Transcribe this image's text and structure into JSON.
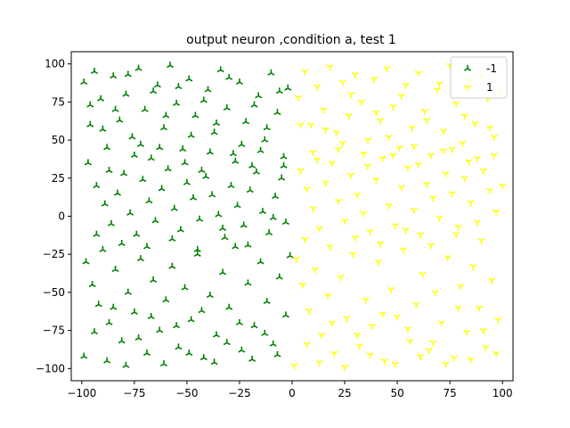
{
  "chart_data": {
    "type": "scatter",
    "title": "output neuron ,condition a, test 1",
    "xlabel": "",
    "ylabel": "",
    "xlim": [
      -105,
      105
    ],
    "ylim": [
      -108,
      108
    ],
    "xticks": [
      -100,
      -75,
      -50,
      -25,
      0,
      25,
      50,
      75,
      100
    ],
    "yticks": [
      -100,
      -75,
      -50,
      -25,
      0,
      25,
      50,
      75,
      100
    ],
    "grid": false,
    "legend": "top-right",
    "series": [
      {
        "name": "-1",
        "color": "#008000",
        "marker": "tri_up",
        "points": [
          [
            -99,
            88
          ],
          [
            -96,
            60
          ],
          [
            -94,
            95
          ],
          [
            -91,
            77
          ],
          [
            -88,
            45
          ],
          [
            -85,
            92
          ],
          [
            -82,
            63
          ],
          [
            -79,
            80
          ],
          [
            -76,
            52
          ],
          [
            -73,
            97
          ],
          [
            -70,
            70
          ],
          [
            -67,
            38
          ],
          [
            -64,
            86
          ],
          [
            -61,
            58
          ],
          [
            -58,
            99
          ],
          [
            -55,
            74
          ],
          [
            -52,
            44
          ],
          [
            -49,
            90
          ],
          [
            -46,
            66
          ],
          [
            -43,
            30
          ],
          [
            -40,
            83
          ],
          [
            -37,
            55
          ],
          [
            -34,
            96
          ],
          [
            -31,
            71
          ],
          [
            -28,
            41
          ],
          [
            -25,
            88
          ],
          [
            -22,
            62
          ],
          [
            -19,
            33
          ],
          [
            -16,
            79
          ],
          [
            -13,
            50
          ],
          [
            -10,
            94
          ],
          [
            -7,
            68
          ],
          [
            -4,
            39
          ],
          [
            -2,
            84
          ],
          [
            -97,
            35
          ],
          [
            -93,
            20
          ],
          [
            -89,
            8
          ],
          [
            -86,
            -5
          ],
          [
            -83,
            15
          ],
          [
            -80,
            28
          ],
          [
            -77,
            2
          ],
          [
            -74,
            -12
          ],
          [
            -71,
            24
          ],
          [
            -68,
            10
          ],
          [
            -65,
            -3
          ],
          [
            -62,
            18
          ],
          [
            -59,
            31
          ],
          [
            -56,
            5
          ],
          [
            -53,
            -9
          ],
          [
            -50,
            22
          ],
          [
            -47,
            12
          ],
          [
            -44,
            -2
          ],
          [
            -41,
            26
          ],
          [
            -38,
            14
          ],
          [
            -35,
            1
          ],
          [
            -32,
            -14
          ],
          [
            -29,
            20
          ],
          [
            -26,
            7
          ],
          [
            -23,
            -6
          ],
          [
            -20,
            17
          ],
          [
            -17,
            29
          ],
          [
            -14,
            3
          ],
          [
            -11,
            -11
          ],
          [
            -8,
            13
          ],
          [
            -5,
            25
          ],
          [
            -3,
            -4
          ],
          [
            -98,
            -30
          ],
          [
            -95,
            -45
          ],
          [
            -92,
            -58
          ],
          [
            -90,
            -22
          ],
          [
            -87,
            -70
          ],
          [
            -84,
            -35
          ],
          [
            -81,
            -82
          ],
          [
            -78,
            -50
          ],
          [
            -75,
            -63
          ],
          [
            -72,
            -28
          ],
          [
            -69,
            -90
          ],
          [
            -66,
            -42
          ],
          [
            -63,
            -75
          ],
          [
            -60,
            -55
          ],
          [
            -57,
            -33
          ],
          [
            -54,
            -86
          ],
          [
            -51,
            -47
          ],
          [
            -48,
            -68
          ],
          [
            -45,
            -25
          ],
          [
            -42,
            -93
          ],
          [
            -39,
            -52
          ],
          [
            -36,
            -78
          ],
          [
            -33,
            -37
          ],
          [
            -30,
            -60
          ],
          [
            -27,
            -20
          ],
          [
            -24,
            -88
          ],
          [
            -21,
            -44
          ],
          [
            -18,
            -72
          ],
          [
            -15,
            -30
          ],
          [
            -12,
            -56
          ],
          [
            -9,
            -84
          ],
          [
            -6,
            -40
          ],
          [
            -3,
            -65
          ],
          [
            -1,
            -26
          ],
          [
            -99,
            -92
          ],
          [
            -94,
            -76
          ],
          [
            -88,
            -95
          ],
          [
            -85,
            -60
          ],
          [
            -79,
            -98
          ],
          [
            -73,
            -80
          ],
          [
            -67,
            -66
          ],
          [
            -61,
            -97
          ],
          [
            -55,
            -72
          ],
          [
            -49,
            -90
          ],
          [
            -43,
            -62
          ],
          [
            -37,
            -96
          ],
          [
            -31,
            -83
          ],
          [
            -25,
            -70
          ],
          [
            -19,
            -94
          ],
          [
            -13,
            -77
          ],
          [
            -7,
            -91
          ],
          [
            -96,
            73
          ],
          [
            -90,
            57
          ],
          [
            -84,
            70
          ],
          [
            -78,
            93
          ],
          [
            -72,
            47
          ],
          [
            -66,
            82
          ],
          [
            -60,
            66
          ],
          [
            -54,
            85
          ],
          [
            -48,
            53
          ],
          [
            -42,
            76
          ],
          [
            -36,
            61
          ],
          [
            -30,
            91
          ],
          [
            -24,
            47
          ],
          [
            -18,
            73
          ],
          [
            -12,
            58
          ],
          [
            -6,
            82
          ],
          [
            -93,
            -12
          ],
          [
            -87,
            30
          ],
          [
            -81,
            -18
          ],
          [
            -75,
            40
          ],
          [
            -69,
            -20
          ],
          [
            -63,
            45
          ],
          [
            -57,
            -15
          ],
          [
            -51,
            35
          ],
          [
            -45,
            -22
          ],
          [
            -39,
            42
          ],
          [
            -33,
            -8
          ],
          [
            -27,
            36
          ],
          [
            -21,
            -19
          ],
          [
            -15,
            43
          ],
          [
            -9,
            -1
          ],
          [
            -4,
            33
          ]
        ]
      },
      {
        "name": "1",
        "color": "#ffff00",
        "marker": "tri_down",
        "points": [
          [
            3,
            78
          ],
          [
            6,
            95
          ],
          [
            9,
            60
          ],
          [
            12,
            85
          ],
          [
            15,
            70
          ],
          [
            18,
            98
          ],
          [
            21,
            55
          ],
          [
            24,
            88
          ],
          [
            27,
            66
          ],
          [
            30,
            93
          ],
          [
            33,
            75
          ],
          [
            36,
            50
          ],
          [
            39,
            90
          ],
          [
            42,
            63
          ],
          [
            45,
            97
          ],
          [
            48,
            72
          ],
          [
            51,
            45
          ],
          [
            54,
            86
          ],
          [
            57,
            58
          ],
          [
            60,
            94
          ],
          [
            63,
            69
          ],
          [
            66,
            40
          ],
          [
            69,
            83
          ],
          [
            72,
            56
          ],
          [
            75,
            99
          ],
          [
            78,
            74
          ],
          [
            81,
            48
          ],
          [
            84,
            89
          ],
          [
            87,
            61
          ],
          [
            90,
            92
          ],
          [
            93,
            77
          ],
          [
            96,
            52
          ],
          [
            99,
            82
          ],
          [
            4,
            30
          ],
          [
            7,
            18
          ],
          [
            10,
            5
          ],
          [
            13,
            -8
          ],
          [
            16,
            22
          ],
          [
            19,
            35
          ],
          [
            22,
            10
          ],
          [
            25,
            -3
          ],
          [
            28,
            27
          ],
          [
            31,
            14
          ],
          [
            34,
            2
          ],
          [
            37,
            -10
          ],
          [
            40,
            24
          ],
          [
            43,
            38
          ],
          [
            46,
            7
          ],
          [
            49,
            -6
          ],
          [
            52,
            19
          ],
          [
            55,
            32
          ],
          [
            58,
            4
          ],
          [
            61,
            -12
          ],
          [
            64,
            21
          ],
          [
            67,
            12
          ],
          [
            70,
            -1
          ],
          [
            73,
            28
          ],
          [
            76,
            15
          ],
          [
            79,
            -7
          ],
          [
            82,
            25
          ],
          [
            85,
            9
          ],
          [
            88,
            -4
          ],
          [
            91,
            30
          ],
          [
            94,
            17
          ],
          [
            97,
            3
          ],
          [
            100,
            20
          ],
          [
            2,
            -28
          ],
          [
            5,
            -45
          ],
          [
            8,
            -62
          ],
          [
            11,
            -35
          ],
          [
            14,
            -78
          ],
          [
            17,
            -52
          ],
          [
            20,
            -90
          ],
          [
            23,
            -40
          ],
          [
            26,
            -67
          ],
          [
            29,
            -25
          ],
          [
            32,
            -85
          ],
          [
            35,
            -55
          ],
          [
            38,
            -72
          ],
          [
            41,
            -30
          ],
          [
            44,
            -95
          ],
          [
            47,
            -48
          ],
          [
            50,
            -66
          ],
          [
            53,
            -22
          ],
          [
            56,
            -82
          ],
          [
            59,
            -58
          ],
          [
            62,
            -38
          ],
          [
            65,
            -88
          ],
          [
            68,
            -50
          ],
          [
            71,
            -70
          ],
          [
            74,
            -27
          ],
          [
            77,
            -93
          ],
          [
            80,
            -46
          ],
          [
            83,
            -76
          ],
          [
            86,
            -33
          ],
          [
            89,
            -60
          ],
          [
            92,
            -86
          ],
          [
            95,
            -42
          ],
          [
            98,
            -68
          ],
          [
            1,
            -98
          ],
          [
            7,
            -84
          ],
          [
            13,
            -96
          ],
          [
            19,
            -70
          ],
          [
            25,
            -99
          ],
          [
            31,
            -78
          ],
          [
            37,
            -91
          ],
          [
            43,
            -64
          ],
          [
            49,
            -97
          ],
          [
            55,
            -74
          ],
          [
            61,
            -92
          ],
          [
            67,
            -83
          ],
          [
            73,
            -97
          ],
          [
            79,
            -60
          ],
          [
            85,
            -94
          ],
          [
            91,
            -75
          ],
          [
            97,
            -90
          ],
          [
            4,
            60
          ],
          [
            10,
            42
          ],
          [
            16,
            57
          ],
          [
            22,
            44
          ],
          [
            28,
            80
          ],
          [
            34,
            41
          ],
          [
            40,
            68
          ],
          [
            46,
            52
          ],
          [
            52,
            79
          ],
          [
            58,
            46
          ],
          [
            64,
            63
          ],
          [
            70,
            87
          ],
          [
            76,
            44
          ],
          [
            82,
            66
          ],
          [
            88,
            38
          ],
          [
            94,
            58
          ],
          [
            6,
            -15
          ],
          [
            12,
            37
          ],
          [
            18,
            -20
          ],
          [
            24,
            48
          ],
          [
            30,
            -14
          ],
          [
            36,
            33
          ],
          [
            42,
            -18
          ],
          [
            48,
            40
          ],
          [
            54,
            -9
          ],
          [
            60,
            34
          ],
          [
            66,
            -19
          ],
          [
            72,
            43
          ],
          [
            78,
            -12
          ],
          [
            84,
            36
          ],
          [
            90,
            -16
          ],
          [
            96,
            40
          ]
        ]
      }
    ]
  }
}
